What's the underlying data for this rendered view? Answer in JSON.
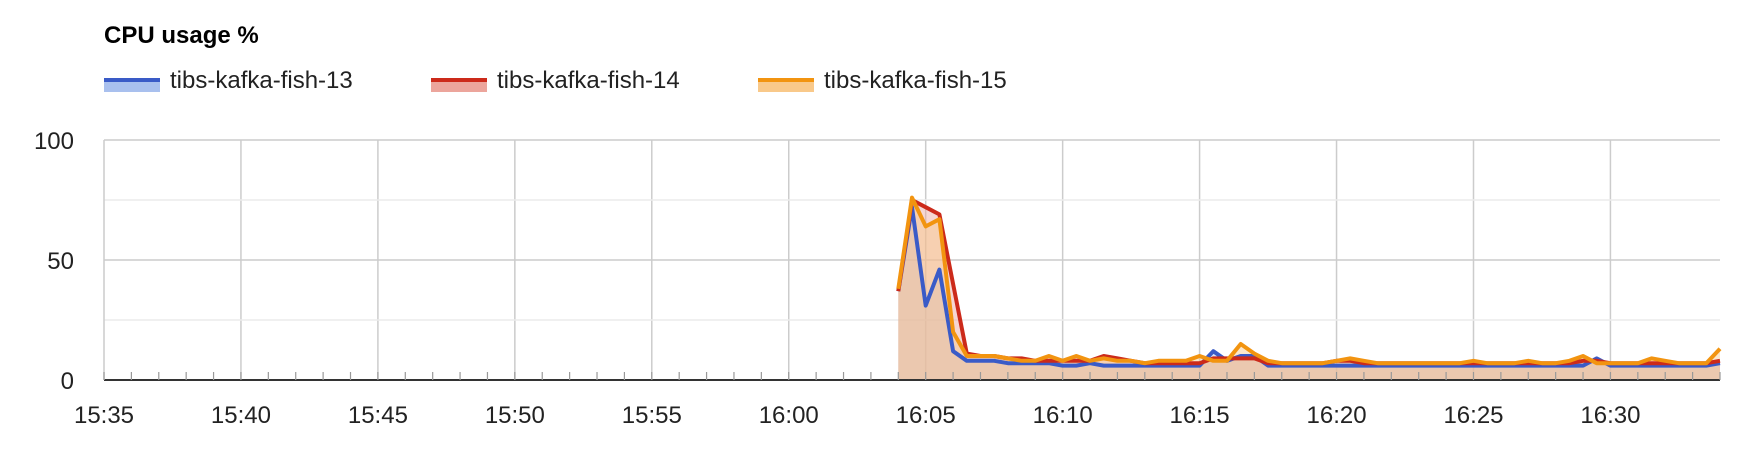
{
  "chart_data": {
    "type": "area",
    "title": "CPU usage %",
    "xlabel": "",
    "ylabel": "",
    "x_unit": "time (HH:MM)",
    "xlim": [
      "15:35",
      "16:34"
    ],
    "ylim": [
      0,
      100
    ],
    "yticks": [
      0,
      50,
      100
    ],
    "xticks": [
      "15:35",
      "15:40",
      "15:45",
      "15:50",
      "15:55",
      "16:00",
      "16:05",
      "16:10",
      "16:15",
      "16:20",
      "16:25",
      "16:30"
    ],
    "grid": true,
    "legend_position": "top-left",
    "x": [
      "16:04",
      "16:04.5",
      "16:05",
      "16:05.5",
      "16:06",
      "16:06.5",
      "16:07",
      "16:07.5",
      "16:08",
      "16:08.5",
      "16:09",
      "16:09.5",
      "16:10",
      "16:10.5",
      "16:11",
      "16:11.5",
      "16:12",
      "16:12.5",
      "16:13",
      "16:13.5",
      "16:14",
      "16:14.5",
      "16:15",
      "16:15.5",
      "16:16",
      "16:16.5",
      "16:17",
      "16:17.5",
      "16:18",
      "16:18.5",
      "16:19",
      "16:19.5",
      "16:20",
      "16:20.5",
      "16:21",
      "16:21.5",
      "16:22",
      "16:22.5",
      "16:23",
      "16:23.5",
      "16:24",
      "16:24.5",
      "16:25",
      "16:25.5",
      "16:26",
      "16:26.5",
      "16:27",
      "16:27.5",
      "16:28",
      "16:28.5",
      "16:29",
      "16:29.5",
      "16:30",
      "16:30.5",
      "16:31",
      "16:31.5",
      "16:32",
      "16:32.5",
      "16:33",
      "16:33.5",
      "16:34"
    ],
    "series": [
      {
        "name": "tibs-kafka-fish-13",
        "color": "#3a5bc7",
        "fill": "#a9c0ee",
        "values": [
          37,
          72,
          31,
          46,
          12,
          8,
          8,
          8,
          7,
          7,
          7,
          7,
          6,
          6,
          7,
          6,
          6,
          6,
          6,
          6,
          6,
          6,
          6,
          12,
          8,
          10,
          10,
          6,
          6,
          6,
          6,
          6,
          6,
          6,
          6,
          6,
          6,
          6,
          6,
          6,
          6,
          6,
          6,
          6,
          6,
          6,
          6,
          6,
          6,
          6,
          6,
          9,
          6,
          6,
          6,
          6,
          6,
          6,
          6,
          6,
          7
        ]
      },
      {
        "name": "tibs-kafka-fish-14",
        "color": "#cc2a1a",
        "fill": "#eca59c",
        "values": [
          37,
          75,
          72,
          69,
          40,
          11,
          10,
          10,
          9,
          9,
          8,
          8,
          8,
          8,
          8,
          10,
          9,
          8,
          7,
          7,
          7,
          7,
          7,
          9,
          9,
          9,
          9,
          7,
          7,
          7,
          7,
          7,
          8,
          8,
          7,
          7,
          7,
          7,
          7,
          7,
          7,
          7,
          7,
          7,
          7,
          7,
          7,
          7,
          7,
          7,
          8,
          8,
          7,
          7,
          7,
          7,
          7,
          7,
          7,
          7,
          8
        ]
      },
      {
        "name": "tibs-kafka-fish-15",
        "color": "#f29410",
        "fill": "#f9c98a",
        "values": [
          38,
          76,
          64,
          67,
          20,
          10,
          10,
          10,
          9,
          8,
          8,
          10,
          8,
          10,
          8,
          9,
          8,
          8,
          7,
          8,
          8,
          8,
          10,
          8,
          8,
          15,
          11,
          8,
          7,
          7,
          7,
          7,
          8,
          9,
          8,
          7,
          7,
          7,
          7,
          7,
          7,
          7,
          8,
          7,
          7,
          7,
          8,
          7,
          7,
          8,
          10,
          7,
          7,
          7,
          7,
          9,
          8,
          7,
          7,
          7,
          13
        ]
      }
    ]
  }
}
